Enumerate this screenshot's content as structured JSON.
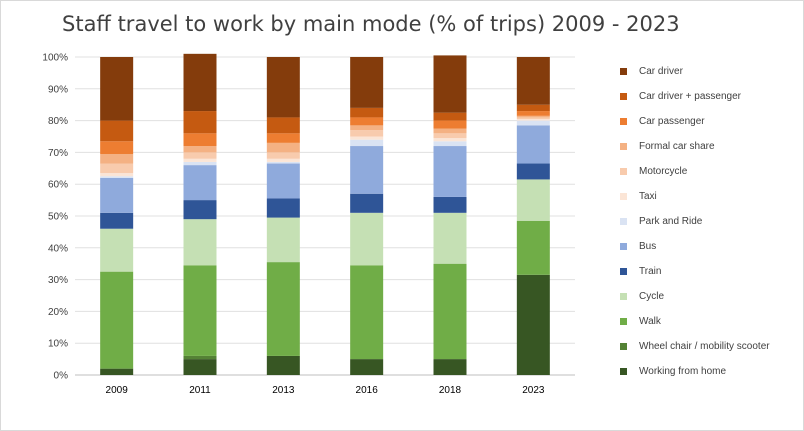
{
  "chart_data": {
    "type": "bar",
    "stacked": true,
    "title": "Staff travel to work by main mode (% of trips) 2009 - 2023",
    "categories": [
      "2009",
      "2011",
      "2013",
      "2016",
      "2018",
      "2023"
    ],
    "ylim": [
      0,
      100
    ],
    "y_ticks": [
      "0%",
      "10%",
      "20%",
      "30%",
      "40%",
      "50%",
      "60%",
      "70%",
      "80%",
      "90%",
      "100%"
    ],
    "grid": true,
    "legend_position": "right",
    "series": [
      {
        "name": "Working from home",
        "color": "#375623",
        "values": [
          2,
          5,
          6,
          5,
          5,
          31.5
        ]
      },
      {
        "name": "Wheel chair / mobility scooter",
        "color": "#548235",
        "values": [
          0,
          1,
          0,
          0,
          0,
          0
        ]
      },
      {
        "name": "Walk",
        "color": "#70ad47",
        "values": [
          30.5,
          28.5,
          29.5,
          29.5,
          30,
          17
        ]
      },
      {
        "name": "Cycle",
        "color": "#c5e0b4",
        "values": [
          13.5,
          14.5,
          14,
          16.5,
          16,
          13
        ]
      },
      {
        "name": "Train",
        "color": "#2f5597",
        "values": [
          5,
          6,
          6,
          6,
          5,
          5
        ]
      },
      {
        "name": "Bus",
        "color": "#8faadc",
        "values": [
          11,
          11,
          11,
          15,
          16,
          12
        ]
      },
      {
        "name": "Park and Ride",
        "color": "#dae3f3",
        "values": [
          0.5,
          1,
          0.5,
          2,
          1.5,
          1.5
        ]
      },
      {
        "name": "Taxi",
        "color": "#fbe5d6",
        "values": [
          1,
          1,
          1,
          1,
          1,
          0.5
        ]
      },
      {
        "name": "Motorcycle",
        "color": "#f8cbad",
        "values": [
          3,
          2,
          2,
          2,
          1.5,
          0.5
        ]
      },
      {
        "name": "Formal car share",
        "color": "#f4b183",
        "values": [
          3,
          2,
          3,
          1.5,
          1.5,
          0.5
        ]
      },
      {
        "name": "Car passenger",
        "color": "#ed7d31",
        "values": [
          4,
          4,
          3,
          2.5,
          2.5,
          1.5
        ]
      },
      {
        "name": "Car driver + passenger",
        "color": "#c55a11",
        "values": [
          6.5,
          7,
          5,
          3,
          2.5,
          2
        ]
      },
      {
        "name": "Car driver",
        "color": "#843c0c",
        "values": [
          20,
          18,
          19,
          16,
          18,
          15
        ]
      }
    ]
  }
}
